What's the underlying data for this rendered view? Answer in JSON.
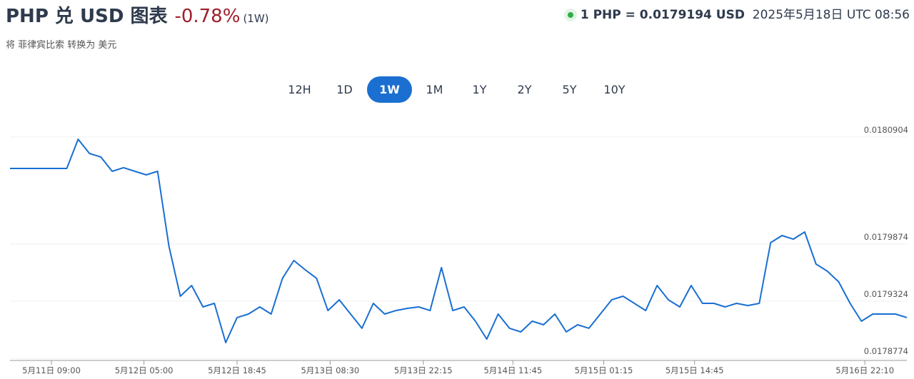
{
  "header": {
    "title": "PHP 兑 USD 图表",
    "change": "-0.78%",
    "period": "(1W)",
    "rate": "1 PHP = 0.0179194 USD",
    "timestamp": "2025年5月18日 UTC 08:56",
    "subtitle": "将 菲律宾比索 转换为 美元"
  },
  "range_buttons": {
    "items": [
      "12H",
      "1D",
      "1W",
      "1M",
      "1Y",
      "2Y",
      "5Y",
      "10Y"
    ],
    "active": "1W"
  },
  "chart_data": {
    "type": "line",
    "x": [
      0,
      1,
      2,
      3,
      4,
      5,
      6,
      7,
      8,
      9,
      10,
      11,
      12,
      13,
      14,
      15,
      16,
      17,
      18,
      19,
      20,
      21,
      22,
      23,
      24,
      25,
      26,
      27,
      28,
      29,
      30,
      31,
      32,
      33,
      34,
      35,
      36,
      37,
      38,
      39,
      40,
      41,
      42,
      43,
      44,
      45,
      46,
      47,
      48,
      49,
      50,
      51,
      52,
      53,
      54,
      55,
      56,
      57,
      58,
      59,
      60,
      61,
      62,
      63,
      64,
      65,
      66,
      67,
      68,
      69,
      70,
      71,
      72,
      73,
      74,
      75,
      76,
      77,
      78,
      79
    ],
    "series": [
      {
        "name": "PHP/USD",
        "color": "#1a6fd1",
        "values": [
          0.0180602,
          0.0180602,
          0.0180602,
          0.0180602,
          0.0180602,
          0.0180602,
          0.0180883,
          0.0180746,
          0.0180712,
          0.0180574,
          0.0180609,
          0.0180574,
          0.018054,
          0.0180574,
          0.0179853,
          0.0179372,
          0.0179475,
          0.0179269,
          0.0179303,
          0.0178925,
          0.0179166,
          0.01792,
          0.0179269,
          0.01792,
          0.0179544,
          0.0179715,
          0.0179626,
          0.0179544,
          0.0179234,
          0.0179337,
          0.01792,
          0.0179063,
          0.0179303,
          0.01792,
          0.0179234,
          0.0179255,
          0.0179269,
          0.0179234,
          0.0179647,
          0.0179234,
          0.0179269,
          0.0179131,
          0.0178959,
          0.01792,
          0.0179063,
          0.0179028,
          0.0179131,
          0.0179097,
          0.01792,
          0.0179028,
          0.0179097,
          0.0179063,
          0.01792,
          0.0179337,
          0.0179372,
          0.0179303,
          0.0179234,
          0.0179475,
          0.0179337,
          0.0179269,
          0.0179475,
          0.0179303,
          0.0179303,
          0.0179269,
          0.0179303,
          0.0179282,
          0.0179303,
          0.0179887,
          0.0179956,
          0.0179921,
          0.017999,
          0.0179681,
          0.0179612,
          0.0179509,
          0.0179303,
          0.0179131,
          0.01792,
          0.01792,
          0.01792,
          0.0179166
        ]
      }
    ],
    "xlim": [
      0,
      79
    ],
    "xticks": [
      {
        "value": 3.65,
        "label": "5月11日 09:00"
      },
      {
        "value": 11.8,
        "label": "5月12日 05:00"
      },
      {
        "value": 20,
        "label": "5月12日 18:45"
      },
      {
        "value": 28.2,
        "label": "5月13日 08:30"
      },
      {
        "value": 36.4,
        "label": "5月13日 22:15"
      },
      {
        "value": 44.3,
        "label": "5月14日 11:45"
      },
      {
        "value": 52.3,
        "label": "5月15日 01:15"
      },
      {
        "value": 60.3,
        "label": "5月15日 14:45"
      },
      {
        "value": 75.3,
        "label": "5月16日 22:10"
      }
    ],
    "ylim": [
      0.0178774,
      0.0180904
    ],
    "yticks": [
      0.0180904,
      0.0179874,
      0.0179324,
      0.0178774
    ],
    "grid": true
  }
}
